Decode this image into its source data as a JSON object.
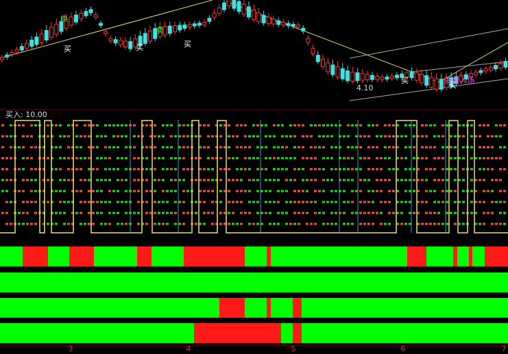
{
  "price_panel": {
    "annotations": [
      "卖",
      "买",
      "卖",
      "买",
      "买",
      "买",
      "买",
      "资金入场"
    ],
    "low_label": "4.10"
  },
  "indicator": {
    "label": "买入: 10.00"
  },
  "x_axis": {
    "labels": [
      "3",
      "4",
      "5",
      "6",
      "7"
    ]
  }
}
